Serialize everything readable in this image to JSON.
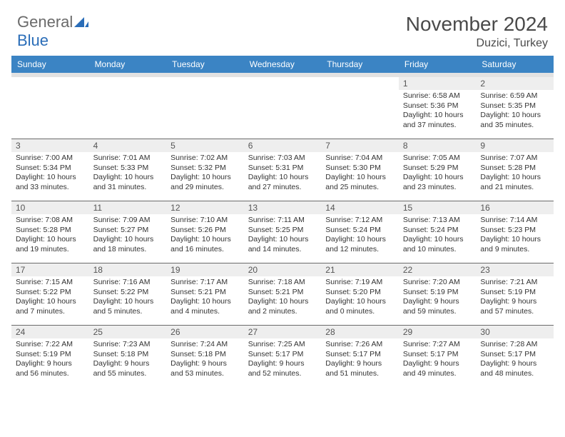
{
  "brand": {
    "part1": "General",
    "part2": "Blue"
  },
  "title": "November 2024",
  "location": "Duzici, Turkey",
  "dow": [
    "Sunday",
    "Monday",
    "Tuesday",
    "Wednesday",
    "Thursday",
    "Friday",
    "Saturday"
  ],
  "colors": {
    "header_bar": "#3b84c4",
    "daynum_bg": "#eeeeee",
    "spacer_bg": "#e2e2e2",
    "rule": "#6b6b6b",
    "logo_gray": "#6a6a6a",
    "logo_blue": "#2a6db8"
  },
  "weeks": [
    [
      null,
      null,
      null,
      null,
      null,
      {
        "n": "1",
        "sr": "Sunrise: 6:58 AM",
        "ss": "Sunset: 5:36 PM",
        "dl1": "Daylight: 10 hours",
        "dl2": "and 37 minutes."
      },
      {
        "n": "2",
        "sr": "Sunrise: 6:59 AM",
        "ss": "Sunset: 5:35 PM",
        "dl1": "Daylight: 10 hours",
        "dl2": "and 35 minutes."
      }
    ],
    [
      {
        "n": "3",
        "sr": "Sunrise: 7:00 AM",
        "ss": "Sunset: 5:34 PM",
        "dl1": "Daylight: 10 hours",
        "dl2": "and 33 minutes."
      },
      {
        "n": "4",
        "sr": "Sunrise: 7:01 AM",
        "ss": "Sunset: 5:33 PM",
        "dl1": "Daylight: 10 hours",
        "dl2": "and 31 minutes."
      },
      {
        "n": "5",
        "sr": "Sunrise: 7:02 AM",
        "ss": "Sunset: 5:32 PM",
        "dl1": "Daylight: 10 hours",
        "dl2": "and 29 minutes."
      },
      {
        "n": "6",
        "sr": "Sunrise: 7:03 AM",
        "ss": "Sunset: 5:31 PM",
        "dl1": "Daylight: 10 hours",
        "dl2": "and 27 minutes."
      },
      {
        "n": "7",
        "sr": "Sunrise: 7:04 AM",
        "ss": "Sunset: 5:30 PM",
        "dl1": "Daylight: 10 hours",
        "dl2": "and 25 minutes."
      },
      {
        "n": "8",
        "sr": "Sunrise: 7:05 AM",
        "ss": "Sunset: 5:29 PM",
        "dl1": "Daylight: 10 hours",
        "dl2": "and 23 minutes."
      },
      {
        "n": "9",
        "sr": "Sunrise: 7:07 AM",
        "ss": "Sunset: 5:28 PM",
        "dl1": "Daylight: 10 hours",
        "dl2": "and 21 minutes."
      }
    ],
    [
      {
        "n": "10",
        "sr": "Sunrise: 7:08 AM",
        "ss": "Sunset: 5:28 PM",
        "dl1": "Daylight: 10 hours",
        "dl2": "and 19 minutes."
      },
      {
        "n": "11",
        "sr": "Sunrise: 7:09 AM",
        "ss": "Sunset: 5:27 PM",
        "dl1": "Daylight: 10 hours",
        "dl2": "and 18 minutes."
      },
      {
        "n": "12",
        "sr": "Sunrise: 7:10 AM",
        "ss": "Sunset: 5:26 PM",
        "dl1": "Daylight: 10 hours",
        "dl2": "and 16 minutes."
      },
      {
        "n": "13",
        "sr": "Sunrise: 7:11 AM",
        "ss": "Sunset: 5:25 PM",
        "dl1": "Daylight: 10 hours",
        "dl2": "and 14 minutes."
      },
      {
        "n": "14",
        "sr": "Sunrise: 7:12 AM",
        "ss": "Sunset: 5:24 PM",
        "dl1": "Daylight: 10 hours",
        "dl2": "and 12 minutes."
      },
      {
        "n": "15",
        "sr": "Sunrise: 7:13 AM",
        "ss": "Sunset: 5:24 PM",
        "dl1": "Daylight: 10 hours",
        "dl2": "and 10 minutes."
      },
      {
        "n": "16",
        "sr": "Sunrise: 7:14 AM",
        "ss": "Sunset: 5:23 PM",
        "dl1": "Daylight: 10 hours",
        "dl2": "and 9 minutes."
      }
    ],
    [
      {
        "n": "17",
        "sr": "Sunrise: 7:15 AM",
        "ss": "Sunset: 5:22 PM",
        "dl1": "Daylight: 10 hours",
        "dl2": "and 7 minutes."
      },
      {
        "n": "18",
        "sr": "Sunrise: 7:16 AM",
        "ss": "Sunset: 5:22 PM",
        "dl1": "Daylight: 10 hours",
        "dl2": "and 5 minutes."
      },
      {
        "n": "19",
        "sr": "Sunrise: 7:17 AM",
        "ss": "Sunset: 5:21 PM",
        "dl1": "Daylight: 10 hours",
        "dl2": "and 4 minutes."
      },
      {
        "n": "20",
        "sr": "Sunrise: 7:18 AM",
        "ss": "Sunset: 5:21 PM",
        "dl1": "Daylight: 10 hours",
        "dl2": "and 2 minutes."
      },
      {
        "n": "21",
        "sr": "Sunrise: 7:19 AM",
        "ss": "Sunset: 5:20 PM",
        "dl1": "Daylight: 10 hours",
        "dl2": "and 0 minutes."
      },
      {
        "n": "22",
        "sr": "Sunrise: 7:20 AM",
        "ss": "Sunset: 5:19 PM",
        "dl1": "Daylight: 9 hours",
        "dl2": "and 59 minutes."
      },
      {
        "n": "23",
        "sr": "Sunrise: 7:21 AM",
        "ss": "Sunset: 5:19 PM",
        "dl1": "Daylight: 9 hours",
        "dl2": "and 57 minutes."
      }
    ],
    [
      {
        "n": "24",
        "sr": "Sunrise: 7:22 AM",
        "ss": "Sunset: 5:19 PM",
        "dl1": "Daylight: 9 hours",
        "dl2": "and 56 minutes."
      },
      {
        "n": "25",
        "sr": "Sunrise: 7:23 AM",
        "ss": "Sunset: 5:18 PM",
        "dl1": "Daylight: 9 hours",
        "dl2": "and 55 minutes."
      },
      {
        "n": "26",
        "sr": "Sunrise: 7:24 AM",
        "ss": "Sunset: 5:18 PM",
        "dl1": "Daylight: 9 hours",
        "dl2": "and 53 minutes."
      },
      {
        "n": "27",
        "sr": "Sunrise: 7:25 AM",
        "ss": "Sunset: 5:17 PM",
        "dl1": "Daylight: 9 hours",
        "dl2": "and 52 minutes."
      },
      {
        "n": "28",
        "sr": "Sunrise: 7:26 AM",
        "ss": "Sunset: 5:17 PM",
        "dl1": "Daylight: 9 hours",
        "dl2": "and 51 minutes."
      },
      {
        "n": "29",
        "sr": "Sunrise: 7:27 AM",
        "ss": "Sunset: 5:17 PM",
        "dl1": "Daylight: 9 hours",
        "dl2": "and 49 minutes."
      },
      {
        "n": "30",
        "sr": "Sunrise: 7:28 AM",
        "ss": "Sunset: 5:17 PM",
        "dl1": "Daylight: 9 hours",
        "dl2": "and 48 minutes."
      }
    ]
  ]
}
